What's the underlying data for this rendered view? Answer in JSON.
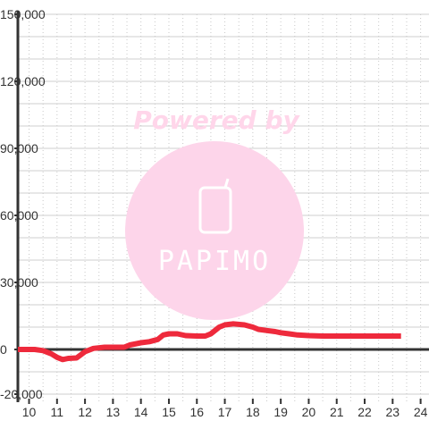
{
  "watermark": {
    "tagline": "Powered by",
    "logo": "PAPIMO",
    "circle_color": "#fdd5ea",
    "text_color": "#ffd6ea"
  },
  "chart_data": {
    "type": "line",
    "title": "",
    "xlabel": "",
    "ylabel": "",
    "xlim": [
      9.6,
      24.3
    ],
    "ylim": [
      -20000,
      150000
    ],
    "x_ticks": [
      "10",
      "11",
      "12",
      "13",
      "14",
      "15",
      "16",
      "17",
      "18",
      "19",
      "20",
      "21",
      "22",
      "23",
      "24"
    ],
    "y_ticks": [
      "150,000",
      "120,000",
      "90,000",
      "60,000",
      "30,000",
      "0",
      "-20,000"
    ],
    "y_tick_values": [
      150000,
      120000,
      90000,
      60000,
      30000,
      0,
      -20000
    ],
    "grid": true,
    "legend": "none",
    "series": [
      {
        "color": "#ee2a3c",
        "x": [
          9.6,
          10.2,
          10.5,
          10.8,
          11.0,
          11.2,
          11.4,
          11.7,
          12.0,
          12.3,
          12.7,
          13.0,
          13.4,
          13.6,
          14.0,
          14.3,
          14.6,
          14.8,
          15.0,
          15.3,
          15.6,
          16.0,
          16.3,
          16.5,
          16.8,
          17.0,
          17.3,
          17.7,
          18.0,
          18.2,
          18.5,
          18.8,
          19.0,
          19.3,
          19.6,
          20.0,
          20.5,
          21.0,
          21.5,
          22.0,
          22.5,
          23.0,
          23.3
        ],
        "y": [
          0,
          0,
          -500,
          -2000,
          -3500,
          -4500,
          -4000,
          -3800,
          -1000,
          500,
          1000,
          1000,
          1000,
          2000,
          3000,
          3500,
          4500,
          6500,
          7000,
          7000,
          6200,
          6000,
          6000,
          7000,
          10000,
          11000,
          11500,
          11000,
          10000,
          9000,
          8500,
          8000,
          7500,
          7000,
          6500,
          6200,
          6000,
          6000,
          6000,
          6000,
          6000,
          6000,
          6000
        ]
      }
    ]
  }
}
